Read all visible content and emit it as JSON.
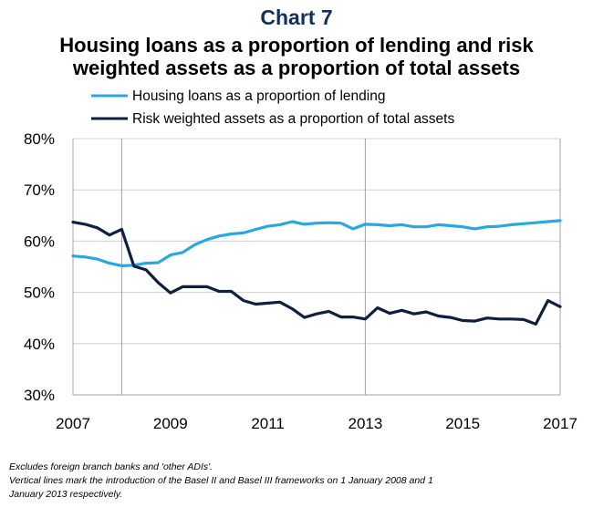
{
  "chart_number": "Chart 7",
  "chart_data": {
    "type": "line",
    "title_lines": [
      "Housing loans as a proportion of lending and risk",
      "weighted assets as a proportion of total assets"
    ],
    "xlim": [
      2007,
      2017
    ],
    "ylim": [
      30,
      80
    ],
    "y_ticks": [
      30,
      40,
      50,
      60,
      70,
      80
    ],
    "y_tick_labels": [
      "30%",
      "40%",
      "50%",
      "60%",
      "70%",
      "80%"
    ],
    "x_ticks": [
      2007,
      2009,
      2011,
      2013,
      2015,
      2017
    ],
    "x_tick_labels": [
      "2007",
      "2009",
      "2011",
      "2013",
      "2015",
      "2017"
    ],
    "vertical_lines": [
      2008,
      2013
    ],
    "grid": "horizontal",
    "legend_position": "top",
    "series": [
      {
        "name": "Housing loans as a proportion of lending",
        "color": "#29a8df",
        "x": [
          2007.0,
          2007.25,
          2007.5,
          2007.75,
          2008.0,
          2008.25,
          2008.5,
          2008.75,
          2009.0,
          2009.25,
          2009.5,
          2009.75,
          2010.0,
          2010.25,
          2010.5,
          2010.75,
          2011.0,
          2011.25,
          2011.5,
          2011.75,
          2012.0,
          2012.25,
          2012.5,
          2012.75,
          2013.0,
          2013.25,
          2013.5,
          2013.75,
          2014.0,
          2014.25,
          2014.5,
          2014.75,
          2015.0,
          2015.25,
          2015.5,
          2015.75,
          2016.0,
          2016.25,
          2016.5,
          2016.75,
          2017.0
        ],
        "y": [
          57.1,
          56.9,
          56.5,
          55.7,
          55.2,
          55.3,
          55.7,
          55.8,
          57.3,
          57.8,
          59.3,
          60.3,
          61.0,
          61.4,
          61.6,
          62.3,
          62.9,
          63.2,
          63.8,
          63.3,
          63.5,
          63.6,
          63.5,
          62.4,
          63.3,
          63.2,
          63.0,
          63.2,
          62.8,
          62.8,
          63.2,
          63.0,
          62.8,
          62.4,
          62.8,
          62.9,
          63.2,
          63.4,
          63.6,
          63.8,
          64.0
        ]
      },
      {
        "name": "Risk weighted assets as a proportion of total assets",
        "color": "#0f1f3d",
        "x": [
          2007.0,
          2007.25,
          2007.5,
          2007.75,
          2008.0,
          2008.25,
          2008.5,
          2008.75,
          2009.0,
          2009.25,
          2009.5,
          2009.75,
          2010.0,
          2010.25,
          2010.5,
          2010.75,
          2011.0,
          2011.25,
          2011.5,
          2011.75,
          2012.0,
          2012.25,
          2012.5,
          2012.75,
          2013.0,
          2013.25,
          2013.5,
          2013.75,
          2014.0,
          2014.25,
          2014.5,
          2014.75,
          2015.0,
          2015.25,
          2015.5,
          2015.75,
          2016.0,
          2016.25,
          2016.5,
          2016.75,
          2017.0
        ],
        "y": [
          63.7,
          63.3,
          62.6,
          61.2,
          62.3,
          55.1,
          54.4,
          51.9,
          49.9,
          51.1,
          51.1,
          51.1,
          50.2,
          50.2,
          48.4,
          47.7,
          47.9,
          48.1,
          46.8,
          45.1,
          45.8,
          46.3,
          45.2,
          45.2,
          44.8,
          47.0,
          45.9,
          46.5,
          45.8,
          46.2,
          45.4,
          45.1,
          44.5,
          44.4,
          45.0,
          44.8,
          44.8,
          44.7,
          43.8,
          48.4,
          47.2
        ]
      }
    ]
  },
  "notes": [
    "Excludes foreign branch banks and 'other ADIs'.",
    "Vertical  lines mark the introduction of the Basel II and Basel III frameworks  on 1 January 2008 and 1",
    "January 2013 respectively."
  ]
}
